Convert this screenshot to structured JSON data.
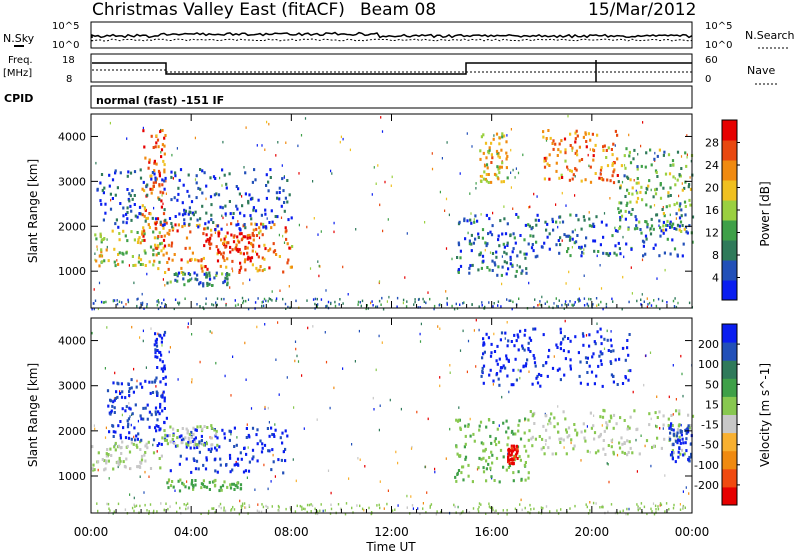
{
  "header": {
    "title": "Christmas Valley East (fitACF)",
    "beam": "Beam 08",
    "date": "15/Mar/2012"
  },
  "top_panels": {
    "nsky_label": "N.Sky",
    "nsky_tick_high": "10^5",
    "nsky_tick_low": "10^0",
    "nsearch_label": "N.Search",
    "nsearch_tick_high": "10^5",
    "nsearch_tick_low": "10^0",
    "freq_label": "Freq.",
    "freq_unit": "[MHz]",
    "freq_tick_high": "18",
    "freq_tick_low": "8",
    "nave_label": "Nave",
    "nave_tick_high": "60",
    "nave_tick_low": "0",
    "cpid_label": "CPID",
    "cpid_value": "normal (fast) -151 IF"
  },
  "colors": {
    "power_scale": [
      "#0a1ef0",
      "#2250b8",
      "#2f7a5a",
      "#3fa048",
      "#9ad040",
      "#f0c020",
      "#f08a10",
      "#e84810",
      "#e60000"
    ],
    "velocity_scale": [
      "#e60000",
      "#f04a10",
      "#f08a10",
      "#f8b030",
      "#c8c8c8",
      "#88c850",
      "#3fa048",
      "#2f7a5a",
      "#2250b8",
      "#0a1ef0"
    ]
  },
  "chart_data": [
    {
      "type": "heatmap",
      "name": "power-panel",
      "ylabel": "Slant Range [km]",
      "xlabel": "",
      "ylim": [
        180,
        4500
      ],
      "yticks": [
        1000,
        2000,
        3000,
        4000
      ],
      "xlim_hours": [
        0,
        24
      ],
      "colorbar": {
        "label": "Power [dB]",
        "ticks": [
          "4",
          "8",
          "12",
          "16",
          "20",
          "24",
          "28"
        ],
        "range": [
          0,
          30
        ]
      },
      "regions": [
        {
          "t0": 0.0,
          "t1": 2.8,
          "r0": 1150,
          "r1": 1950,
          "value": 16
        },
        {
          "t0": 2.0,
          "t1": 3.0,
          "r0": 1500,
          "r1": 4200,
          "value": 24
        },
        {
          "t0": 2.6,
          "t1": 8.0,
          "r0": 1000,
          "r1": 2100,
          "value": 22
        },
        {
          "t0": 4.5,
          "t1": 6.5,
          "r0": 1200,
          "r1": 1900,
          "value": 28
        },
        {
          "t0": 3.0,
          "t1": 5.5,
          "r0": 700,
          "r1": 1000,
          "value": 8
        },
        {
          "t0": 0.2,
          "t1": 8.0,
          "r0": 1950,
          "r1": 3300,
          "value": 4
        },
        {
          "t0": 14.5,
          "t1": 17.5,
          "r0": 900,
          "r1": 2300,
          "value": 6
        },
        {
          "t0": 15.5,
          "t1": 16.6,
          "r0": 3000,
          "r1": 4100,
          "value": 18
        },
        {
          "t0": 17.5,
          "t1": 24.0,
          "r0": 1350,
          "r1": 2300,
          "value": 6
        },
        {
          "t0": 18.0,
          "t1": 21.0,
          "r0": 3000,
          "r1": 4200,
          "value": 22
        },
        {
          "t0": 21.0,
          "t1": 24.0,
          "r0": 1900,
          "r1": 3800,
          "value": 12
        }
      ]
    },
    {
      "type": "heatmap",
      "name": "velocity-panel",
      "ylabel": "Slant Range [km]",
      "xlabel": "Time UT",
      "ylim": [
        180,
        4500
      ],
      "yticks": [
        1000,
        2000,
        3000,
        4000
      ],
      "xlim_hours": [
        0,
        24
      ],
      "xticks": [
        "00:00",
        "04:00",
        "08:00",
        "12:00",
        "16:00",
        "20:00",
        "00:00"
      ],
      "colorbar": {
        "label": "Velocity [m s^-1]",
        "ticks": [
          "-200",
          "-100",
          "-50",
          "-15",
          "15",
          "50",
          "100",
          "200"
        ],
        "range": [
          -250,
          250
        ]
      },
      "regions": [
        {
          "t0": 0.0,
          "t1": 2.8,
          "r0": 1150,
          "r1": 1800,
          "value": 0
        },
        {
          "t0": 0.6,
          "t1": 2.6,
          "r0": 1800,
          "r1": 3200,
          "value": 200
        },
        {
          "t0": 2.5,
          "t1": 3.0,
          "r0": 1700,
          "r1": 4300,
          "value": 220
        },
        {
          "t0": 3.0,
          "t1": 7.8,
          "r0": 1100,
          "r1": 2100,
          "value": 210
        },
        {
          "t0": 2.8,
          "t1": 5.0,
          "r0": 1700,
          "r1": 2150,
          "value": 0
        },
        {
          "t0": 3.0,
          "t1": 6.0,
          "r0": 700,
          "r1": 950,
          "value": 60
        },
        {
          "t0": 14.5,
          "t1": 17.5,
          "r0": 900,
          "r1": 2300,
          "value": 40
        },
        {
          "t0": 16.6,
          "t1": 17.0,
          "r0": 1300,
          "r1": 1700,
          "value": -220
        },
        {
          "t0": 15.5,
          "t1": 21.5,
          "r0": 3000,
          "r1": 4300,
          "value": 220
        },
        {
          "t0": 17.5,
          "t1": 24.0,
          "r0": 1500,
          "r1": 2500,
          "value": 0
        },
        {
          "t0": 23.0,
          "t1": 24.0,
          "r0": 1350,
          "r1": 2200,
          "value": 200
        }
      ]
    }
  ]
}
